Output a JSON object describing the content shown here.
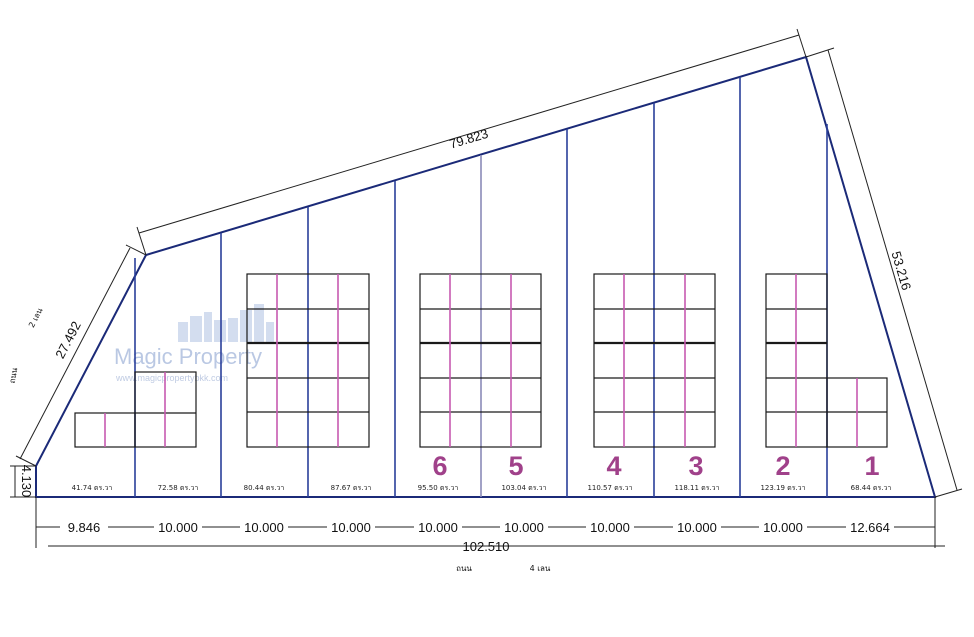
{
  "boundary_dims": {
    "top": "79.823",
    "right": "53.216",
    "left_long": "27.492",
    "left_short": "4.130",
    "bottom_total": "102.510"
  },
  "segments": [
    "9.846",
    "10.000",
    "10.000",
    "10.000",
    "10.000",
    "10.000",
    "10.000",
    "10.000",
    "10.000",
    "12.664"
  ],
  "plot_areas": [
    "41.74 ตร.วา",
    "72.58 ตร.วา",
    "80.44 ตร.วา",
    "87.67 ตร.วา",
    "95.50 ตร.วา",
    "103.04 ตร.วา",
    "110.57 ตร.วา",
    "118.11 ตร.วา",
    "123.19 ตร.วา",
    "68.44 ตร.วา"
  ],
  "plot_numbers": [
    "6",
    "5",
    "4",
    "3",
    "2",
    "1"
  ],
  "road_labels": {
    "left_road": "ถนน",
    "left_lanes": "2 เลน",
    "bottom_road": "ถนน",
    "bottom_lanes": "4 เลน"
  },
  "watermark": {
    "brand": "Magic Property",
    "url": "www.magicpropertybkk.com"
  },
  "colors": {
    "boundary": "#1b2a78",
    "divider_blue": "#2a3f9a",
    "divider_pink": "#c65ab0",
    "plot_number": "#a0418a"
  }
}
